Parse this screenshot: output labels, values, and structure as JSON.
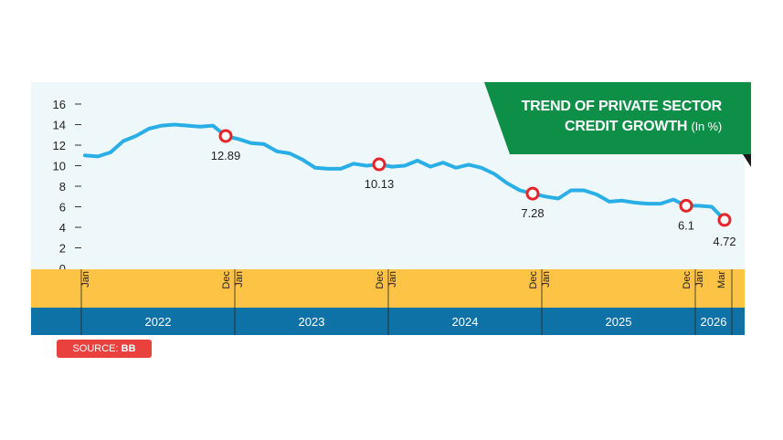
{
  "title": {
    "line1": "TREND OF PRIVATE SECTOR",
    "line2": "CREDIT GROWTH",
    "unit": "(In %)"
  },
  "source": {
    "label": "SOURCE:",
    "value": "BB"
  },
  "colors": {
    "plot_bg": "#eef8fb",
    "line": "#29aee6",
    "marker": "#e4262a",
    "title_bg": "#0d8f48",
    "month_band": "#fcc344",
    "year_band": "#0f72a6",
    "source_bg": "#e8413e"
  },
  "chart_data": {
    "type": "line",
    "ylim": [
      0,
      16
    ],
    "yticks": [
      "0",
      "2",
      "4",
      "6",
      "8",
      "10",
      "12",
      "14",
      "16"
    ],
    "grid": false,
    "month_ticks": [
      {
        "label": "Jan",
        "index": 0
      },
      {
        "label": "Dec",
        "index": 11
      },
      {
        "label": "Jan",
        "index": 12
      },
      {
        "label": "Dec",
        "index": 23
      },
      {
        "label": "Jan",
        "index": 24
      },
      {
        "label": "Dec",
        "index": 35
      },
      {
        "label": "Jan",
        "index": 36
      },
      {
        "label": "Dec",
        "index": 47
      },
      {
        "label": "Jan",
        "index": 48
      },
      {
        "label": "Mar",
        "index": 50
      }
    ],
    "years": [
      "2022",
      "2023",
      "2024",
      "2025",
      "2026"
    ],
    "series": [
      {
        "values": [
          11.0,
          10.9,
          11.3,
          12.4,
          12.9,
          13.6,
          13.9,
          14.0,
          13.9,
          13.8,
          13.9,
          12.89,
          12.6,
          12.2,
          12.1,
          11.4,
          11.2,
          10.6,
          9.8,
          9.7,
          9.7,
          10.2,
          10.0,
          10.13,
          9.9,
          10.0,
          10.5,
          9.9,
          10.3,
          9.8,
          10.1,
          9.8,
          9.2,
          8.3,
          7.6,
          7.28,
          7.0,
          6.8,
          7.6,
          7.6,
          7.2,
          6.5,
          6.6,
          6.4,
          6.3,
          6.3,
          6.7,
          6.1,
          6.1,
          6.0,
          4.72
        ]
      }
    ],
    "annotations": [
      {
        "index": 11,
        "label": "12.89"
      },
      {
        "index": 23,
        "label": "10.13"
      },
      {
        "index": 35,
        "label": "7.28"
      },
      {
        "index": 47,
        "label": "6.1"
      },
      {
        "index": 50,
        "label": "4.72"
      }
    ]
  }
}
